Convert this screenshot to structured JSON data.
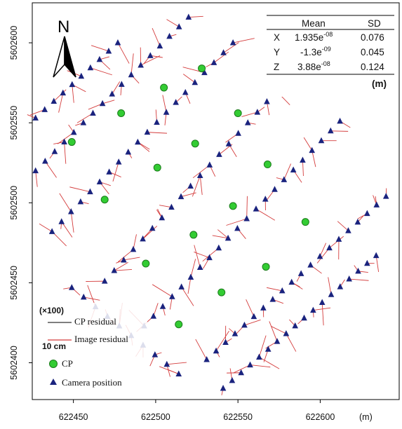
{
  "chart_data": {
    "type": "scatter",
    "x_unit": "(m)",
    "xlim": [
      622425,
      622648
    ],
    "ylim": [
      5602377,
      5602625
    ],
    "x_ticks": [
      622450,
      622500,
      622550,
      622600
    ],
    "y_ticks": [
      5602400,
      5602450,
      5602500,
      5602550,
      5602600
    ],
    "north_label": "N",
    "stats_table": {
      "headers": [
        "",
        "Mean",
        "SD"
      ],
      "rows": [
        {
          "axis": "X",
          "mean": "1.935e",
          "mean_exp": "-08",
          "sd": "0.076"
        },
        {
          "axis": "Y",
          "mean": "-1.3e",
          "mean_exp": "-09",
          "sd": "0.045"
        },
        {
          "axis": "Z",
          "mean": "3.88e",
          "mean_exp": "-08",
          "sd": "0.124"
        }
      ],
      "unit": "(m)"
    },
    "legend": {
      "scale_label": "(×100)",
      "cp_residual": "CP residual",
      "image_residual": "Image residual",
      "scale_bar_label": "10 cm",
      "cp": "CP",
      "camera": "Camera position"
    },
    "colors": {
      "camera": "#1a237e",
      "cp": "#33cc33",
      "image_residual": "#d43c3c",
      "cp_residual": "#333333"
    },
    "cp_points": [
      [
        622449,
        5602538
      ],
      [
        622479,
        5602556
      ],
      [
        622469,
        5602502
      ],
      [
        622505,
        5602572
      ],
      [
        622501,
        5602522
      ],
      [
        622528,
        5602584
      ],
      [
        622524,
        5602537
      ],
      [
        622550,
        5602556
      ],
      [
        622568,
        5602524
      ],
      [
        622547,
        5602498
      ],
      [
        622523,
        5602480
      ],
      [
        622591,
        5602488
      ],
      [
        622494,
        5602462
      ],
      [
        622567,
        5602460
      ],
      [
        622540,
        5602444
      ],
      [
        622514,
        5602424
      ]
    ],
    "camera_strips": [
      {
        "start": [
          622427,
          5602553
        ],
        "end": [
          622477,
          5602600
        ],
        "n": 10
      },
      {
        "start": [
          622427,
          5602520
        ],
        "end": [
          622520,
          5602616
        ],
        "n": 17
      },
      {
        "start": [
          622437,
          5602482
        ],
        "end": [
          622547,
          5602600
        ],
        "n": 20
      },
      {
        "start": [
          622469,
          5602451
        ],
        "end": [
          622585,
          5602583
        ],
        "n": 21
      },
      {
        "start": [
          622493,
          5602423
        ],
        "end": [
          622612,
          5602551
        ],
        "n": 22
      },
      {
        "start": [
          622531,
          5602402
        ],
        "end": [
          622640,
          5602504
        ],
        "n": 20
      },
      {
        "start": [
          622541,
          5602384
        ],
        "end": [
          622634,
          5602467
        ],
        "n": 18
      },
      {
        "start": [
          622449,
          5602447
        ],
        "end": [
          622514,
          5602393
        ],
        "n": 10
      }
    ]
  }
}
